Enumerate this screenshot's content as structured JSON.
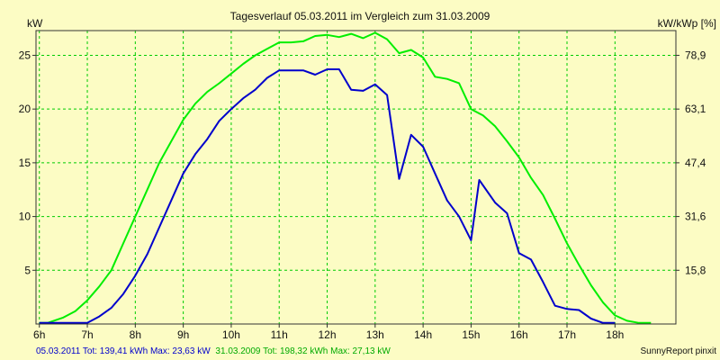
{
  "chart_data": {
    "type": "line",
    "title": "Tagesverlauf 05.03.2011 im Vergleich zum 31.03.2009",
    "y_unit_left": "kW",
    "y_unit_right": "kW/kWp [%]",
    "x_ticks": [
      "6h",
      "7h",
      "8h",
      "9h",
      "10h",
      "11h",
      "12h",
      "13h",
      "14h",
      "15h",
      "16h",
      "17h",
      "18h"
    ],
    "y_ticks_left": [
      5,
      10,
      15,
      20,
      25
    ],
    "y_ticks_right": [
      "15,8",
      "31,6",
      "47,4",
      "63,1",
      "78,9"
    ],
    "xlim": [
      5.93,
      19.27
    ],
    "ylim": [
      0,
      27.3
    ],
    "grid": true,
    "series": [
      {
        "color": "#00ee00",
        "x": [
          6.0,
          6.17,
          6.5,
          6.75,
          7.0,
          7.25,
          7.5,
          7.75,
          8.0,
          8.25,
          8.5,
          8.75,
          9.0,
          9.25,
          9.5,
          9.75,
          10.0,
          10.25,
          10.5,
          10.75,
          11.0,
          11.25,
          11.5,
          11.75,
          12.0,
          12.25,
          12.5,
          12.75,
          13.0,
          13.25,
          13.5,
          13.75,
          14.0,
          14.25,
          14.5,
          14.75,
          15.0,
          15.25,
          15.5,
          15.75,
          16.0,
          16.25,
          16.5,
          16.75,
          17.0,
          17.25,
          17.5,
          17.75,
          18.0,
          18.25,
          18.5,
          18.75
        ],
        "y": [
          0.1,
          0.1,
          0.6,
          1.2,
          2.2,
          3.5,
          5.0,
          7.5,
          10.0,
          12.5,
          15.0,
          17.0,
          19.0,
          20.5,
          21.6,
          22.4,
          23.3,
          24.2,
          25.0,
          25.6,
          26.2,
          26.2,
          26.3,
          26.8,
          26.9,
          26.7,
          27.0,
          26.6,
          27.1,
          26.5,
          25.2,
          25.5,
          24.8,
          23.0,
          22.8,
          22.4,
          20.0,
          19.4,
          18.4,
          17.0,
          15.5,
          13.6,
          12.0,
          9.8,
          7.5,
          5.5,
          3.6,
          2.0,
          0.8,
          0.3,
          0.1,
          0.1
        ]
      },
      {
        "color": "#0000cc",
        "x": [
          6.0,
          6.5,
          7.0,
          7.25,
          7.5,
          7.75,
          8.0,
          8.25,
          8.5,
          8.75,
          9.0,
          9.25,
          9.5,
          9.75,
          10.0,
          10.25,
          10.5,
          10.75,
          11.0,
          11.25,
          11.5,
          11.75,
          12.0,
          12.25,
          12.5,
          12.75,
          13.0,
          13.25,
          13.5,
          13.75,
          14.0,
          14.25,
          14.5,
          14.75,
          15.0,
          15.17,
          15.5,
          15.75,
          16.0,
          16.25,
          16.5,
          16.75,
          17.0,
          17.25,
          17.5,
          17.75,
          18.0
        ],
        "y": [
          0.1,
          0.1,
          0.1,
          0.7,
          1.5,
          2.8,
          4.5,
          6.5,
          9.0,
          11.5,
          14.0,
          15.8,
          17.2,
          18.9,
          20.0,
          21.0,
          21.8,
          22.9,
          23.6,
          23.6,
          23.6,
          23.2,
          23.7,
          23.7,
          21.8,
          21.7,
          22.3,
          21.3,
          13.5,
          17.6,
          16.5,
          14.0,
          11.5,
          10.0,
          7.8,
          13.4,
          11.3,
          10.3,
          6.6,
          6.0,
          3.9,
          1.7,
          1.4,
          1.3,
          0.5,
          0.1,
          0.1
        ]
      }
    ],
    "footer_left": [
      {
        "text": "05.03.2011 Tot: 139,41 kWh Max: 23,63 kW",
        "color": "#0000cc"
      },
      {
        "text": "31.03.2009 Tot: 198,32 kWh Max: 27,13 kW",
        "color": "#00aa00"
      }
    ],
    "footer_right": "SunnyReport pinxit"
  }
}
